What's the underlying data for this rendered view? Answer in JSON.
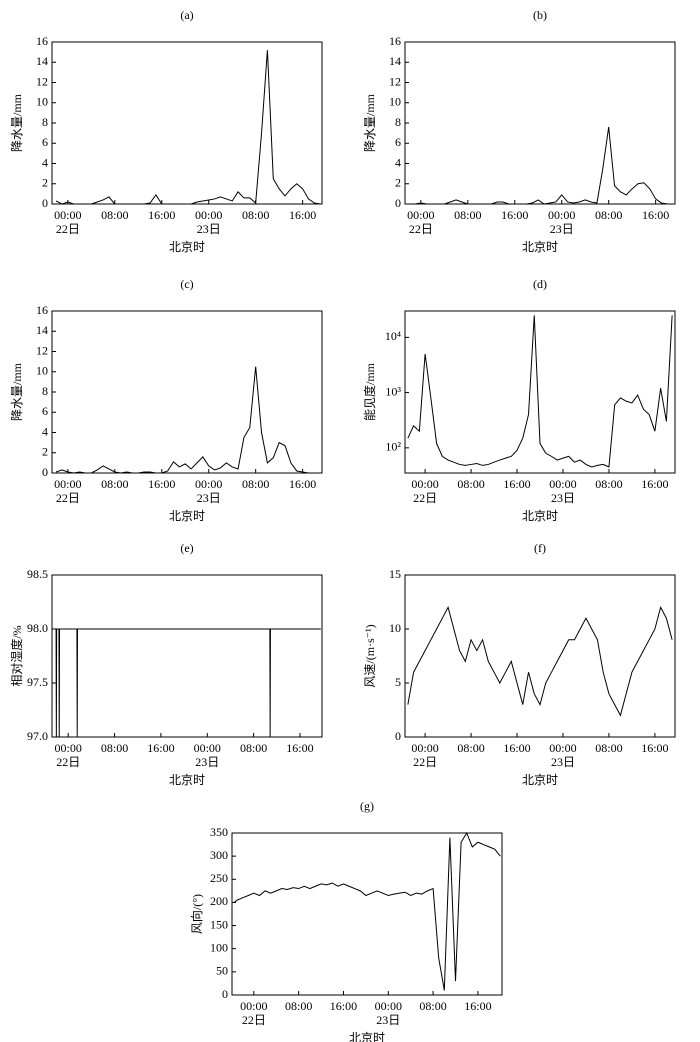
{
  "chart_data": [
    {
      "type": "line",
      "panel_label": "(a)",
      "ylabel": "降水量/mm",
      "xlabel": "北京时",
      "color": "#000000",
      "xlim": [
        -2.7,
        43.3
      ],
      "ylim": [
        0,
        16
      ],
      "yticks": [
        0,
        2,
        4,
        6,
        8,
        10,
        12,
        14,
        16
      ],
      "xticks": [
        {
          "value": 0,
          "label": "00:00"
        },
        {
          "value": 8,
          "label": "08:00"
        },
        {
          "value": 16,
          "label": "16:00"
        },
        {
          "value": 24,
          "label": "00:00"
        },
        {
          "value": 32,
          "label": "08:00"
        },
        {
          "value": 40,
          "label": "16:00"
        }
      ],
      "day_labels": [
        {
          "value": 0,
          "label": "22日"
        },
        {
          "value": 24,
          "label": "23日"
        }
      ],
      "x": [
        -2,
        -1,
        0,
        1,
        2,
        3,
        4,
        5,
        6,
        7,
        8,
        9,
        10,
        11,
        12,
        13,
        14,
        15,
        16,
        17,
        18,
        19,
        20,
        21,
        22,
        23,
        24,
        25,
        26,
        27,
        28,
        29,
        30,
        31,
        32,
        33,
        34,
        35,
        36,
        37,
        38,
        39,
        40,
        41,
        42,
        43
      ],
      "values": [
        0.3,
        0,
        0.2,
        0,
        0,
        0,
        0,
        0.2,
        0.4,
        0.7,
        0,
        0,
        0,
        0,
        0,
        0,
        0.1,
        0.9,
        0,
        0,
        0,
        0,
        0,
        0,
        0.2,
        0.3,
        0.4,
        0.5,
        0.7,
        0.5,
        0.3,
        1.2,
        0.6,
        0.6,
        0.1,
        7.0,
        15.2,
        2.5,
        1.5,
        0.8,
        1.5,
        2.0,
        1.5,
        0.5,
        0.1,
        0
      ]
    },
    {
      "type": "line",
      "panel_label": "(b)",
      "ylabel": "降水量/mm",
      "xlabel": "北京时",
      "color": "#000000",
      "xlim": [
        -2.7,
        43.3
      ],
      "ylim": [
        0,
        16
      ],
      "yticks": [
        0,
        2,
        4,
        6,
        8,
        10,
        12,
        14,
        16
      ],
      "xticks": [
        {
          "value": 0,
          "label": "00:00"
        },
        {
          "value": 8,
          "label": "08:00"
        },
        {
          "value": 16,
          "label": "16:00"
        },
        {
          "value": 24,
          "label": "00:00"
        },
        {
          "value": 32,
          "label": "08:00"
        },
        {
          "value": 40,
          "label": "16:00"
        }
      ],
      "day_labels": [
        {
          "value": 0,
          "label": "22日"
        },
        {
          "value": 24,
          "label": "23日"
        }
      ],
      "x": [
        -2,
        -1,
        0,
        1,
        2,
        3,
        4,
        5,
        6,
        7,
        8,
        9,
        10,
        11,
        12,
        13,
        14,
        15,
        16,
        17,
        18,
        19,
        20,
        21,
        22,
        23,
        24,
        25,
        26,
        27,
        28,
        29,
        30,
        31,
        32,
        33,
        34,
        35,
        36,
        37,
        38,
        39,
        40,
        41,
        42,
        43
      ],
      "values": [
        0,
        0,
        0.1,
        0,
        0,
        0,
        0,
        0.2,
        0.4,
        0.2,
        0,
        0,
        0,
        0,
        0,
        0.2,
        0.2,
        0,
        0,
        0,
        0,
        0.1,
        0.4,
        0,
        0.1,
        0.2,
        0.9,
        0.2,
        0.1,
        0.2,
        0.4,
        0.2,
        0.1,
        3.5,
        7.6,
        1.8,
        1.2,
        0.9,
        1.5,
        2.0,
        2.1,
        1.5,
        0.5,
        0.1,
        0,
        0
      ]
    },
    {
      "type": "line",
      "panel_label": "(c)",
      "ylabel": "降水量/mm",
      "xlabel": "北京时",
      "color": "#000000",
      "xlim": [
        -2.7,
        43.3
      ],
      "ylim": [
        0,
        16
      ],
      "yticks": [
        0,
        2,
        4,
        6,
        8,
        10,
        12,
        14,
        16
      ],
      "xticks": [
        {
          "value": 0,
          "label": "00:00"
        },
        {
          "value": 8,
          "label": "08:00"
        },
        {
          "value": 16,
          "label": "16:00"
        },
        {
          "value": 24,
          "label": "00:00"
        },
        {
          "value": 32,
          "label": "08:00"
        },
        {
          "value": 40,
          "label": "16:00"
        }
      ],
      "day_labels": [
        {
          "value": 0,
          "label": "22日"
        },
        {
          "value": 24,
          "label": "23日"
        }
      ],
      "x": [
        -2,
        -1,
        0,
        1,
        2,
        3,
        4,
        5,
        6,
        7,
        8,
        9,
        10,
        11,
        12,
        13,
        14,
        15,
        16,
        17,
        18,
        19,
        20,
        21,
        22,
        23,
        24,
        25,
        26,
        27,
        28,
        29,
        30,
        31,
        32,
        33,
        34,
        35,
        36,
        37,
        38,
        39,
        40,
        41,
        42,
        43
      ],
      "values": [
        0.1,
        0.3,
        0.1,
        0,
        0.1,
        0,
        0,
        0.3,
        0.7,
        0.4,
        0.1,
        0,
        0.1,
        0,
        0,
        0.1,
        0.1,
        0,
        0,
        0.2,
        1.1,
        0.6,
        0.9,
        0.4,
        1.0,
        1.6,
        0.7,
        0.3,
        0.5,
        1.0,
        0.6,
        0.4,
        3.5,
        4.5,
        10.5,
        4.0,
        1.0,
        1.5,
        3.0,
        2.7,
        1.0,
        0.2,
        0.1,
        0,
        0,
        0
      ]
    },
    {
      "type": "line",
      "panel_label": "(d)",
      "ylabel": "能见度/mm",
      "xlabel": "北京时",
      "color": "#000000",
      "log_y": true,
      "xlim": [
        -3.5,
        43.5
      ],
      "ylim": [
        35,
        30000
      ],
      "yticks": [
        {
          "value": 100,
          "label": "10²"
        },
        {
          "value": 1000,
          "label": "10³"
        },
        {
          "value": 10000,
          "label": "10⁴"
        }
      ],
      "xticks": [
        {
          "value": 0,
          "label": "00:00"
        },
        {
          "value": 8,
          "label": "08:00"
        },
        {
          "value": 16,
          "label": "16:00"
        },
        {
          "value": 24,
          "label": "00:00"
        },
        {
          "value": 32,
          "label": "08:00"
        },
        {
          "value": 40,
          "label": "16:00"
        }
      ],
      "day_labels": [
        {
          "value": 0,
          "label": "22日"
        },
        {
          "value": 24,
          "label": "23日"
        }
      ],
      "x": [
        -3,
        -2,
        -1,
        0,
        1,
        2,
        3,
        4,
        5,
        6,
        7,
        8,
        9,
        10,
        11,
        12,
        13,
        14,
        15,
        16,
        17,
        18,
        19,
        20,
        21,
        22,
        23,
        24,
        25,
        26,
        27,
        28,
        29,
        30,
        31,
        32,
        33,
        34,
        35,
        36,
        37,
        38,
        39,
        40,
        41,
        42,
        43
      ],
      "values": [
        150,
        250,
        200,
        5000,
        800,
        120,
        70,
        60,
        55,
        50,
        48,
        50,
        52,
        48,
        50,
        55,
        60,
        65,
        70,
        90,
        150,
        400,
        25000,
        120,
        80,
        70,
        60,
        65,
        70,
        55,
        60,
        50,
        45,
        48,
        50,
        45,
        600,
        800,
        700,
        650,
        900,
        500,
        400,
        200,
        1200,
        300,
        25000
      ]
    },
    {
      "type": "line",
      "panel_label": "(e)",
      "ylabel": "相对湿度/%",
      "xlabel": "北京时",
      "color": "#000000",
      "xlim": [
        -2.8,
        43.8
      ],
      "ylim": [
        97,
        98.5
      ],
      "yticks": [
        {
          "value": 97,
          "label": "97.0"
        },
        97.5,
        {
          "value": 98,
          "label": "98.0"
        },
        98.5
      ],
      "xticks": [
        {
          "value": 0,
          "label": "00:00"
        },
        {
          "value": 8,
          "label": "08:00"
        },
        {
          "value": 16,
          "label": "16:00"
        },
        {
          "value": 24,
          "label": "00:00"
        },
        {
          "value": 32,
          "label": "08:00"
        },
        {
          "value": 40,
          "label": "16:00"
        }
      ],
      "day_labels": [
        {
          "value": 0,
          "label": "22日"
        },
        {
          "value": 24,
          "label": "23日"
        }
      ],
      "x": [
        -2.6,
        -2.1,
        -2.05,
        -2.0,
        -1.6,
        -1.55,
        -1.5,
        1.5,
        1.55,
        1.6,
        34.8,
        34.85,
        34.9,
        43.6
      ],
      "values": [
        98,
        98,
        97,
        98,
        98,
        97,
        98,
        98,
        97,
        98,
        98,
        97,
        98,
        98
      ]
    },
    {
      "type": "line",
      "panel_label": "(f)",
      "ylabel": "风速/(m·s⁻¹)",
      "xlabel": "北京时",
      "color": "#000000",
      "xlim": [
        -3.5,
        43.5
      ],
      "ylim": [
        0,
        15
      ],
      "yticks": [
        0,
        5,
        10,
        15
      ],
      "xticks": [
        {
          "value": 0,
          "label": "00:00"
        },
        {
          "value": 8,
          "label": "08:00"
        },
        {
          "value": 16,
          "label": "16:00"
        },
        {
          "value": 24,
          "label": "00:00"
        },
        {
          "value": 32,
          "label": "08:00"
        },
        {
          "value": 40,
          "label": "16:00"
        }
      ],
      "day_labels": [
        {
          "value": 0,
          "label": "22日"
        },
        {
          "value": 24,
          "label": "23日"
        }
      ],
      "x": [
        -3,
        -2,
        -1,
        0,
        1,
        2,
        3,
        4,
        5,
        6,
        7,
        8,
        9,
        10,
        11,
        12,
        13,
        14,
        15,
        16,
        17,
        18,
        19,
        20,
        21,
        22,
        23,
        24,
        25,
        26,
        27,
        28,
        29,
        30,
        31,
        32,
        33,
        34,
        35,
        36,
        37,
        38,
        39,
        40,
        41,
        42,
        43
      ],
      "values": [
        3,
        6,
        7,
        8,
        9,
        10,
        11,
        12,
        10,
        8,
        7,
        9,
        8,
        9,
        7,
        6,
        5,
        6,
        7,
        5,
        3,
        6,
        4,
        3,
        5,
        6,
        7,
        8,
        9,
        9,
        10,
        11,
        10,
        9,
        6,
        4,
        3,
        2,
        4,
        6,
        7,
        8,
        9,
        10,
        12,
        11,
        9
      ]
    },
    {
      "type": "line",
      "panel_label": "(g)",
      "ylabel": "风向/(°)",
      "xlabel": "北京时",
      "color": "#000000",
      "xlim": [
        -3.9,
        44.3
      ],
      "ylim": [
        0,
        350
      ],
      "yticks": [
        0,
        50,
        100,
        150,
        200,
        250,
        300,
        350
      ],
      "xticks": [
        {
          "value": 0,
          "label": "00:00"
        },
        {
          "value": 8,
          "label": "08:00"
        },
        {
          "value": 16,
          "label": "16:00"
        },
        {
          "value": 24,
          "label": "00:00"
        },
        {
          "value": 32,
          "label": "08:00"
        },
        {
          "value": 40,
          "label": "16:00"
        }
      ],
      "day_labels": [
        {
          "value": 0,
          "label": "22日"
        },
        {
          "value": 24,
          "label": "23日"
        }
      ],
      "x": [
        -3.5,
        -3,
        -2,
        -1,
        0,
        1,
        2,
        3,
        4,
        5,
        6,
        7,
        8,
        9,
        10,
        11,
        12,
        13,
        14,
        15,
        16,
        17,
        18,
        19,
        20,
        21,
        22,
        23,
        24,
        25,
        26,
        27,
        28,
        29,
        30,
        31,
        32,
        33,
        34,
        35,
        36,
        37,
        38,
        39,
        40,
        41,
        42,
        43,
        44
      ],
      "values": [
        200,
        205,
        210,
        215,
        220,
        215,
        225,
        220,
        225,
        230,
        228,
        232,
        230,
        235,
        230,
        235,
        240,
        238,
        242,
        235,
        240,
        235,
        230,
        225,
        215,
        220,
        225,
        220,
        215,
        218,
        220,
        222,
        215,
        220,
        218,
        225,
        230,
        80,
        10,
        340,
        30,
        330,
        350,
        320,
        330,
        325,
        320,
        315,
        300
      ]
    }
  ]
}
